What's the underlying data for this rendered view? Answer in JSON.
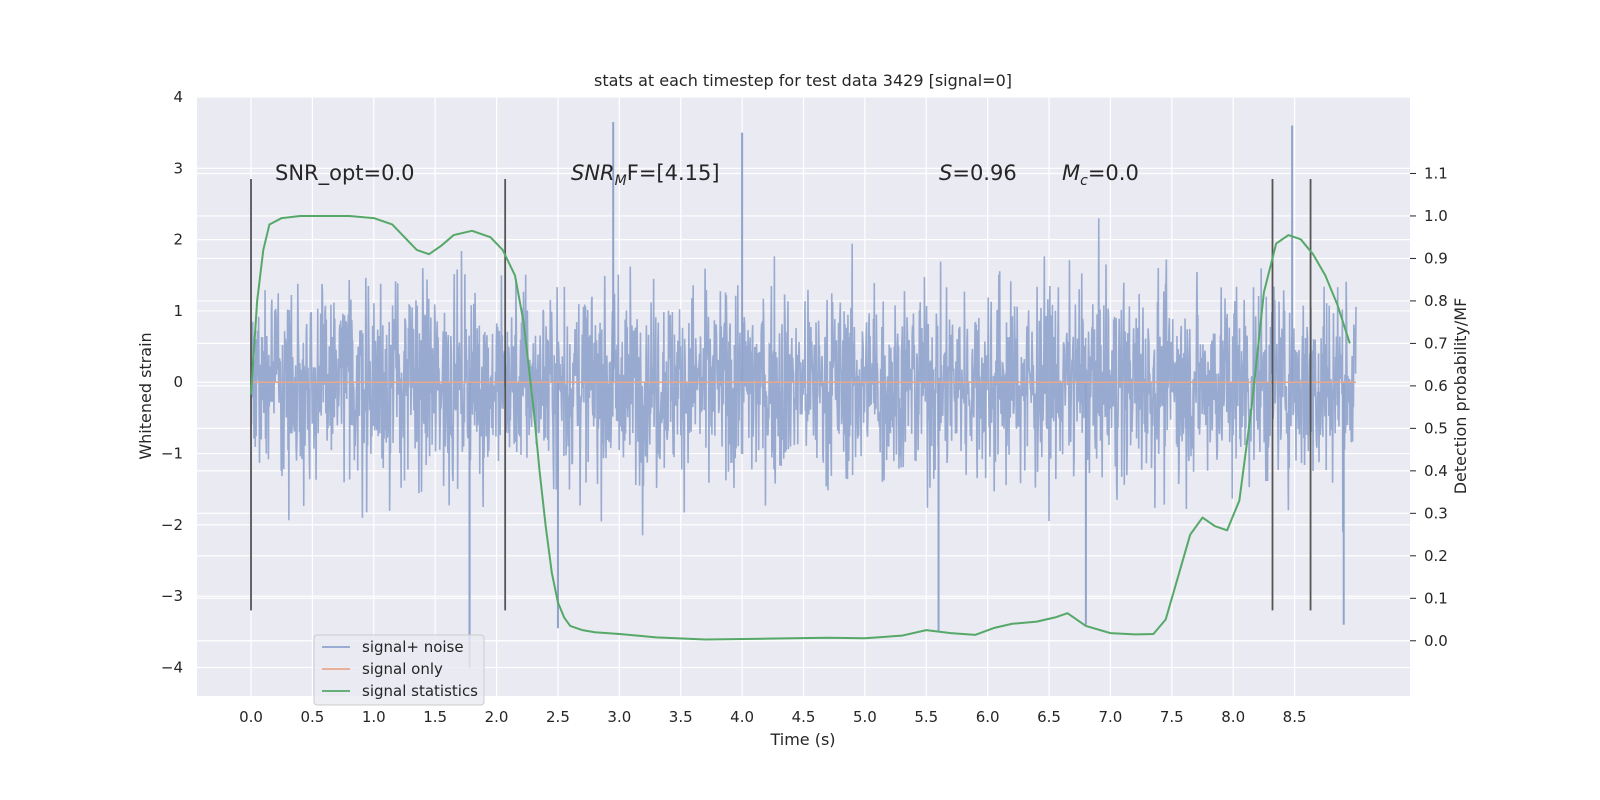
{
  "chart_data": {
    "type": "line",
    "title": "stats at each timestep for test data 3429 [signal=0]",
    "xlabel": "Time (s)",
    "ylabel": "Whitened strain",
    "ylabel_right": "Detection probability/MF",
    "xlim": [
      -0.44,
      9.44
    ],
    "ylim": [
      -4.4,
      4.0
    ],
    "ylim_right": [
      -0.13,
      1.28
    ],
    "x_ticks": [
      "0.0",
      "0.5",
      "1.0",
      "1.5",
      "2.0",
      "2.5",
      "3.0",
      "3.5",
      "4.0",
      "4.5",
      "5.0",
      "5.5",
      "6.0",
      "6.5",
      "7.0",
      "7.5",
      "8.0",
      "8.5"
    ],
    "y_ticks": [
      "4",
      "3",
      "2",
      "1",
      "0",
      "−1",
      "−2",
      "−3",
      "−4"
    ],
    "y_right_ticks": [
      "1.1",
      "1.0",
      "0.9",
      "0.8",
      "0.7",
      "0.6",
      "0.5",
      "0.4",
      "0.3",
      "0.2",
      "0.1",
      "0.0"
    ],
    "annotations": {
      "snr_opt": "SNR_opt=0.0",
      "snr_mf_base": "SNR",
      "snr_mf_sub": "M",
      "snr_mf_rest": "F=[4.15]",
      "s_base": "S",
      "s_rest": "=0.96",
      "mc_base": "M",
      "mc_sub": "c",
      "mc_rest": "=0.0"
    },
    "legend": [
      "signal+ noise",
      "signal only",
      "signal statistics"
    ],
    "legend_placement": "lower-left",
    "noise_series": {
      "name": "signal+ noise",
      "color": "#8fa3cc",
      "x_range": [
        0.0,
        9.0
      ],
      "typical_range": [
        -2.4,
        2.3
      ],
      "peaks": [
        [
          2.95,
          3.65
        ],
        [
          4.0,
          3.5
        ],
        [
          8.48,
          3.6
        ],
        [
          1.78,
          -3.6
        ],
        [
          1.78,
          -4.0
        ],
        [
          2.5,
          -3.45
        ],
        [
          5.6,
          -3.5
        ],
        [
          6.8,
          -3.4
        ],
        [
          8.9,
          -3.4
        ]
      ]
    },
    "signal_series": {
      "name": "signal only",
      "color": "#e8a88b",
      "x": [
        0.0,
        9.0
      ],
      "y": [
        0.0,
        0.0
      ]
    },
    "stat_series": {
      "name": "signal statistics",
      "color": "#55a868",
      "x": [
        0.0,
        0.05,
        0.1,
        0.15,
        0.25,
        0.4,
        0.6,
        0.8,
        1.0,
        1.15,
        1.25,
        1.35,
        1.45,
        1.55,
        1.65,
        1.8,
        1.95,
        2.05,
        2.15,
        2.22,
        2.3,
        2.35,
        2.4,
        2.45,
        2.5,
        2.55,
        2.6,
        2.7,
        2.8,
        3.0,
        3.3,
        3.7,
        4.2,
        4.7,
        5.0,
        5.3,
        5.5,
        5.7,
        5.9,
        6.05,
        6.2,
        6.4,
        6.55,
        6.65,
        6.8,
        7.0,
        7.2,
        7.35,
        7.45,
        7.55,
        7.65,
        7.75,
        7.85,
        7.95,
        8.05,
        8.15,
        8.25,
        8.35,
        8.45,
        8.55,
        8.65,
        8.75,
        8.85,
        8.95
      ],
      "y": [
        0.58,
        0.8,
        0.92,
        0.98,
        0.995,
        1.0,
        1.0,
        1.0,
        0.995,
        0.98,
        0.95,
        0.92,
        0.91,
        0.93,
        0.955,
        0.965,
        0.95,
        0.92,
        0.86,
        0.75,
        0.55,
        0.4,
        0.27,
        0.16,
        0.09,
        0.055,
        0.035,
        0.025,
        0.02,
        0.016,
        0.008,
        0.003,
        0.005,
        0.007,
        0.006,
        0.012,
        0.025,
        0.018,
        0.014,
        0.03,
        0.04,
        0.045,
        0.055,
        0.065,
        0.035,
        0.018,
        0.015,
        0.016,
        0.05,
        0.15,
        0.25,
        0.29,
        0.27,
        0.26,
        0.33,
        0.55,
        0.82,
        0.935,
        0.955,
        0.945,
        0.91,
        0.86,
        0.79,
        0.7
      ]
    },
    "markers": {
      "color": "#555555",
      "x": [
        0.0,
        2.07,
        8.32,
        8.63
      ],
      "y_range": [
        -3.2,
        2.85
      ]
    }
  }
}
